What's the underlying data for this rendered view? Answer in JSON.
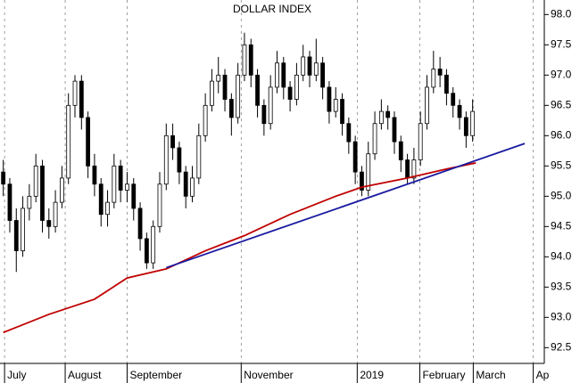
{
  "chart_data": {
    "type": "candlestick",
    "title": "DOLLAR INDEX",
    "open": [
      95.4,
      95.2,
      94.6,
      94.1,
      94.8,
      95.0,
      95.5,
      94.6,
      94.5,
      94.9,
      95.3,
      96.5,
      96.9,
      96.3,
      95.5,
      95.2,
      94.7,
      94.9,
      95.5,
      95.1,
      95.2,
      94.8,
      94.3,
      93.9,
      94.5,
      95.2,
      96.0,
      95.8,
      95.4,
      95.0,
      95.3,
      96.0,
      96.5,
      96.9,
      97.0,
      96.6,
      96.3,
      97.0,
      97.5,
      97.0,
      96.5,
      96.2,
      96.8,
      97.2,
      96.8,
      96.6,
      97.0,
      97.3,
      97.0,
      97.2,
      96.8,
      96.4,
      96.6,
      96.2,
      95.9,
      95.4,
      95.1,
      95.7,
      96.2,
      96.4,
      96.3,
      95.9,
      95.6,
      95.3,
      95.6,
      96.2,
      96.8,
      97.1,
      97.0,
      96.7,
      96.5,
      96.3,
      96.0
    ],
    "high": [
      95.6,
      95.3,
      94.8,
      95.0,
      95.2,
      95.7,
      95.6,
      94.8,
      95.1,
      95.5,
      96.7,
      97.0,
      97.0,
      96.4,
      95.7,
      95.3,
      95.1,
      95.7,
      95.6,
      95.4,
      95.3,
      94.9,
      94.4,
      94.6,
      95.4,
      96.2,
      96.2,
      95.9,
      95.5,
      95.5,
      96.2,
      96.7,
      97.1,
      97.3,
      97.1,
      96.7,
      97.2,
      97.7,
      97.6,
      97.1,
      96.6,
      97.0,
      97.4,
      97.3,
      96.9,
      97.2,
      97.5,
      97.4,
      97.6,
      97.3,
      96.9,
      96.8,
      96.7,
      96.3,
      96.0,
      95.5,
      95.9,
      96.4,
      96.6,
      96.5,
      96.4,
      96.0,
      95.7,
      95.8,
      96.4,
      97.0,
      97.4,
      97.3,
      97.1,
      96.8,
      96.6,
      96.4,
      96.6
    ],
    "low": [
      95.0,
      94.4,
      93.75,
      94.0,
      94.6,
      94.9,
      94.4,
      94.3,
      94.4,
      94.8,
      95.2,
      96.3,
      96.1,
      95.3,
      95.0,
      94.5,
      94.5,
      94.8,
      94.9,
      94.9,
      94.6,
      94.1,
      93.8,
      93.8,
      94.4,
      95.1,
      95.6,
      95.2,
      94.8,
      94.9,
      95.2,
      95.9,
      96.4,
      96.7,
      96.4,
      96.0,
      96.2,
      96.9,
      96.8,
      96.3,
      96.0,
      96.1,
      96.7,
      96.6,
      96.4,
      96.5,
      96.9,
      96.8,
      96.9,
      96.6,
      96.2,
      96.3,
      96.0,
      95.7,
      95.2,
      95.0,
      95.0,
      95.6,
      96.1,
      96.1,
      95.7,
      95.4,
      95.2,
      95.2,
      95.5,
      96.1,
      96.7,
      96.8,
      96.5,
      96.3,
      96.1,
      95.8,
      95.9
    ],
    "close": [
      95.2,
      94.6,
      94.1,
      94.8,
      95.0,
      95.5,
      94.6,
      94.5,
      94.9,
      95.3,
      96.5,
      96.9,
      96.3,
      95.5,
      95.2,
      94.7,
      94.9,
      95.5,
      95.1,
      95.2,
      94.8,
      94.3,
      93.9,
      94.5,
      95.2,
      96.0,
      95.8,
      95.4,
      95.0,
      95.3,
      96.0,
      96.5,
      96.9,
      97.0,
      96.6,
      96.3,
      97.0,
      97.5,
      97.0,
      96.5,
      96.2,
      96.8,
      97.2,
      96.8,
      96.6,
      97.0,
      97.3,
      97.0,
      97.2,
      96.8,
      96.4,
      96.6,
      96.2,
      95.9,
      95.4,
      95.1,
      95.7,
      96.2,
      96.4,
      96.3,
      95.9,
      95.6,
      95.3,
      95.6,
      96.2,
      96.8,
      97.1,
      97.0,
      96.7,
      96.5,
      96.3,
      96.0,
      96.4
    ],
    "lines": [
      {
        "color": "#c00000",
        "x": [
          0,
          7,
          14,
          19,
          25,
          31,
          37,
          44,
          51,
          55,
          62,
          68,
          72.5
        ],
        "values": [
          92.75,
          93.05,
          93.3,
          93.65,
          93.8,
          94.1,
          94.35,
          94.7,
          95.0,
          95.15,
          95.3,
          95.45,
          95.55
        ]
      },
      {
        "color": "#1a1aa0",
        "x": [
          25,
          80
        ],
        "values": [
          93.82,
          95.87
        ]
      }
    ],
    "xlim": [
      -0.5,
      83
    ],
    "xticks": [
      {
        "value": 0.2,
        "label": "July"
      },
      {
        "value": 9.5,
        "label": "August"
      },
      {
        "value": 19,
        "label": "September"
      },
      {
        "value": 36.5,
        "label": "November"
      },
      {
        "value": 54.3,
        "label": "2019"
      },
      {
        "value": 63.9,
        "label": "February"
      },
      {
        "value": 72.1,
        "label": "March"
      },
      {
        "value": 81.3,
        "label": "Ap"
      }
    ],
    "ylim": [
      92.24,
      98.24
    ],
    "yticks": [
      {
        "value": 92.5,
        "label": "92.5"
      },
      {
        "value": 93,
        "label": "93.0"
      },
      93.5,
      {
        "value": 94,
        "label": "94.0"
      },
      94.5,
      {
        "value": 95,
        "label": "95.0"
      },
      95.5,
      {
        "value": 96,
        "label": "96.0"
      },
      96.5,
      {
        "value": 97,
        "label": "97.0"
      },
      97.5,
      {
        "value": 98,
        "label": "98.0"
      }
    ]
  }
}
